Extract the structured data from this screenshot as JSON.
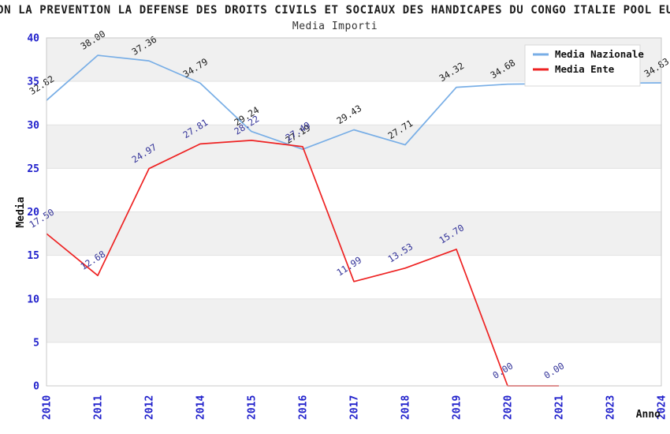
{
  "title": "ON LA PREVENTION LA DEFENSE DES DROITS CIVILS ET SOCIAUX DES HANDICAPES DU CONGO ITALIE POOL EU",
  "subtitle": "Media Importi",
  "chart_data": {
    "type": "line",
    "title": "ON LA PREVENTION LA DEFENSE DES DROITS CIVILS ET SOCIAUX DES HANDICAPES DU CONGO ITALIE POOL EU",
    "subtitle": "Media Importi",
    "xlabel": "Anno",
    "ylabel": "Media",
    "ylim": [
      0,
      40
    ],
    "ytick_step": 5,
    "yticks": [
      0,
      5,
      10,
      15,
      20,
      25,
      30,
      35,
      40
    ],
    "categories": [
      "2010",
      "2011",
      "2012",
      "2014",
      "2015",
      "2016",
      "2017",
      "2018",
      "2019",
      "2020",
      "2021",
      "2023",
      "2024"
    ],
    "grid_bands": true,
    "legend_position": "top-right",
    "series": [
      {
        "name": "Media Nazionale",
        "color": "#78aee6",
        "label_color": "#1a1a1a",
        "values": [
          32.82,
          38.0,
          37.36,
          34.79,
          29.24,
          27.19,
          29.43,
          27.71,
          34.32,
          34.68,
          34.75,
          34.8,
          34.83
        ],
        "labels": [
          "32.82",
          "38.00",
          "37.36",
          "34.79",
          "29.24",
          "27.19",
          "29.43",
          "27.71",
          "34.32",
          "34.68",
          null,
          null,
          "34.83"
        ]
      },
      {
        "name": "Media Ente",
        "color": "#ee2222",
        "label_color": "#333399",
        "values": [
          17.5,
          12.68,
          24.97,
          27.81,
          28.22,
          27.49,
          11.99,
          13.53,
          15.7,
          0.0,
          0.0
        ],
        "labels": [
          "17.50",
          "12.68",
          "24.97",
          "27.81",
          "28.22",
          "27.49",
          "11.99",
          "13.53",
          "15.70",
          "0.00",
          "0.00"
        ]
      }
    ],
    "colors": {
      "background": "#ffffff",
      "band": "#f0f0f0",
      "gridline": "#e3e3e3",
      "plot_border": "#c9c9c9",
      "tick_label": "#2222cc",
      "axis_title": "#111111",
      "data_label_nazionale": "#1a1a1a",
      "data_label_ente": "#333399",
      "legend_border": "#d9d9d9",
      "legend_text": "#111111"
    }
  }
}
